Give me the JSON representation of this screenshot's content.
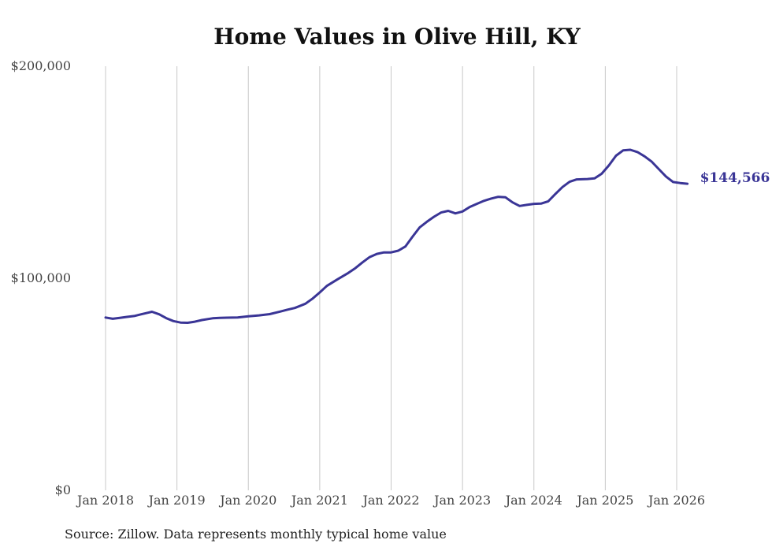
{
  "chart_data": {
    "type": "line",
    "title": "Home Values in Olive Hill, KY",
    "xlabel": "",
    "ylabel": "",
    "ylim": [
      0,
      200000
    ],
    "y_ticks": [
      {
        "value": 0,
        "label": "$0"
      },
      {
        "value": 100000,
        "label": "$100,000"
      },
      {
        "value": 200000,
        "label": "$200,000"
      }
    ],
    "x_ticks": [
      {
        "value": 2018,
        "label": "Jan 2018"
      },
      {
        "value": 2019,
        "label": "Jan 2019"
      },
      {
        "value": 2020,
        "label": "Jan 2020"
      },
      {
        "value": 2021,
        "label": "Jan 2021"
      },
      {
        "value": 2022,
        "label": "Jan 2022"
      },
      {
        "value": 2023,
        "label": "Jan 2023"
      },
      {
        "value": 2024,
        "label": "Jan 2024"
      },
      {
        "value": 2025,
        "label": "Jan 2025"
      },
      {
        "value": 2026,
        "label": "Jan 2026"
      }
    ],
    "grid": "vertical",
    "series": [
      {
        "name": "Typical home value",
        "color": "#3a3596",
        "x": [
          2018.0,
          2018.1,
          2018.2,
          2018.3,
          2018.4,
          2018.5,
          2018.6,
          2018.65,
          2018.75,
          2018.85,
          2018.95,
          2019.05,
          2019.15,
          2019.25,
          2019.35,
          2019.5,
          2019.6,
          2019.7,
          2019.85,
          2020.0,
          2020.15,
          2020.3,
          2020.45,
          2020.55,
          2020.65,
          2020.8,
          2020.9,
          2021.0,
          2021.1,
          2021.25,
          2021.4,
          2021.5,
          2021.6,
          2021.7,
          2021.8,
          2021.9,
          2022.0,
          2022.1,
          2022.2,
          2022.3,
          2022.4,
          2022.5,
          2022.6,
          2022.7,
          2022.8,
          2022.9,
          2023.0,
          2023.1,
          2023.2,
          2023.3,
          2023.4,
          2023.5,
          2023.6,
          2023.7,
          2023.8,
          2023.9,
          2024.0,
          2024.1,
          2024.2,
          2024.3,
          2024.4,
          2024.5,
          2024.6,
          2024.75,
          2024.85,
          2024.95,
          2025.05,
          2025.15,
          2025.25,
          2025.35,
          2025.45,
          2025.55,
          2025.65,
          2025.75,
          2025.85,
          2025.95,
          2026.05,
          2026.15
        ],
        "values": [
          81500,
          80900,
          81300,
          81800,
          82200,
          83000,
          83800,
          84200,
          83000,
          81200,
          79800,
          79100,
          79000,
          79500,
          80300,
          81100,
          81300,
          81400,
          81500,
          82100,
          82500,
          83100,
          84300,
          85200,
          86000,
          88000,
          90400,
          93300,
          96400,
          99500,
          102500,
          104800,
          107500,
          110000,
          111500,
          112200,
          112200,
          113000,
          115000,
          119600,
          124000,
          126600,
          129000,
          131000,
          131800,
          130600,
          131500,
          133600,
          135100,
          136500,
          137600,
          138400,
          138200,
          135800,
          134100,
          134600,
          135100,
          135200,
          136300,
          139700,
          143000,
          145500,
          146600,
          146800,
          147100,
          149300,
          153200,
          157800,
          160300,
          160600,
          159500,
          157500,
          155000,
          151500,
          148000,
          145400,
          144900,
          144566
        ]
      }
    ],
    "end_label": "$144,566",
    "legend": "none"
  },
  "source_note": "Source: Zillow. Data represents monthly typical home value"
}
